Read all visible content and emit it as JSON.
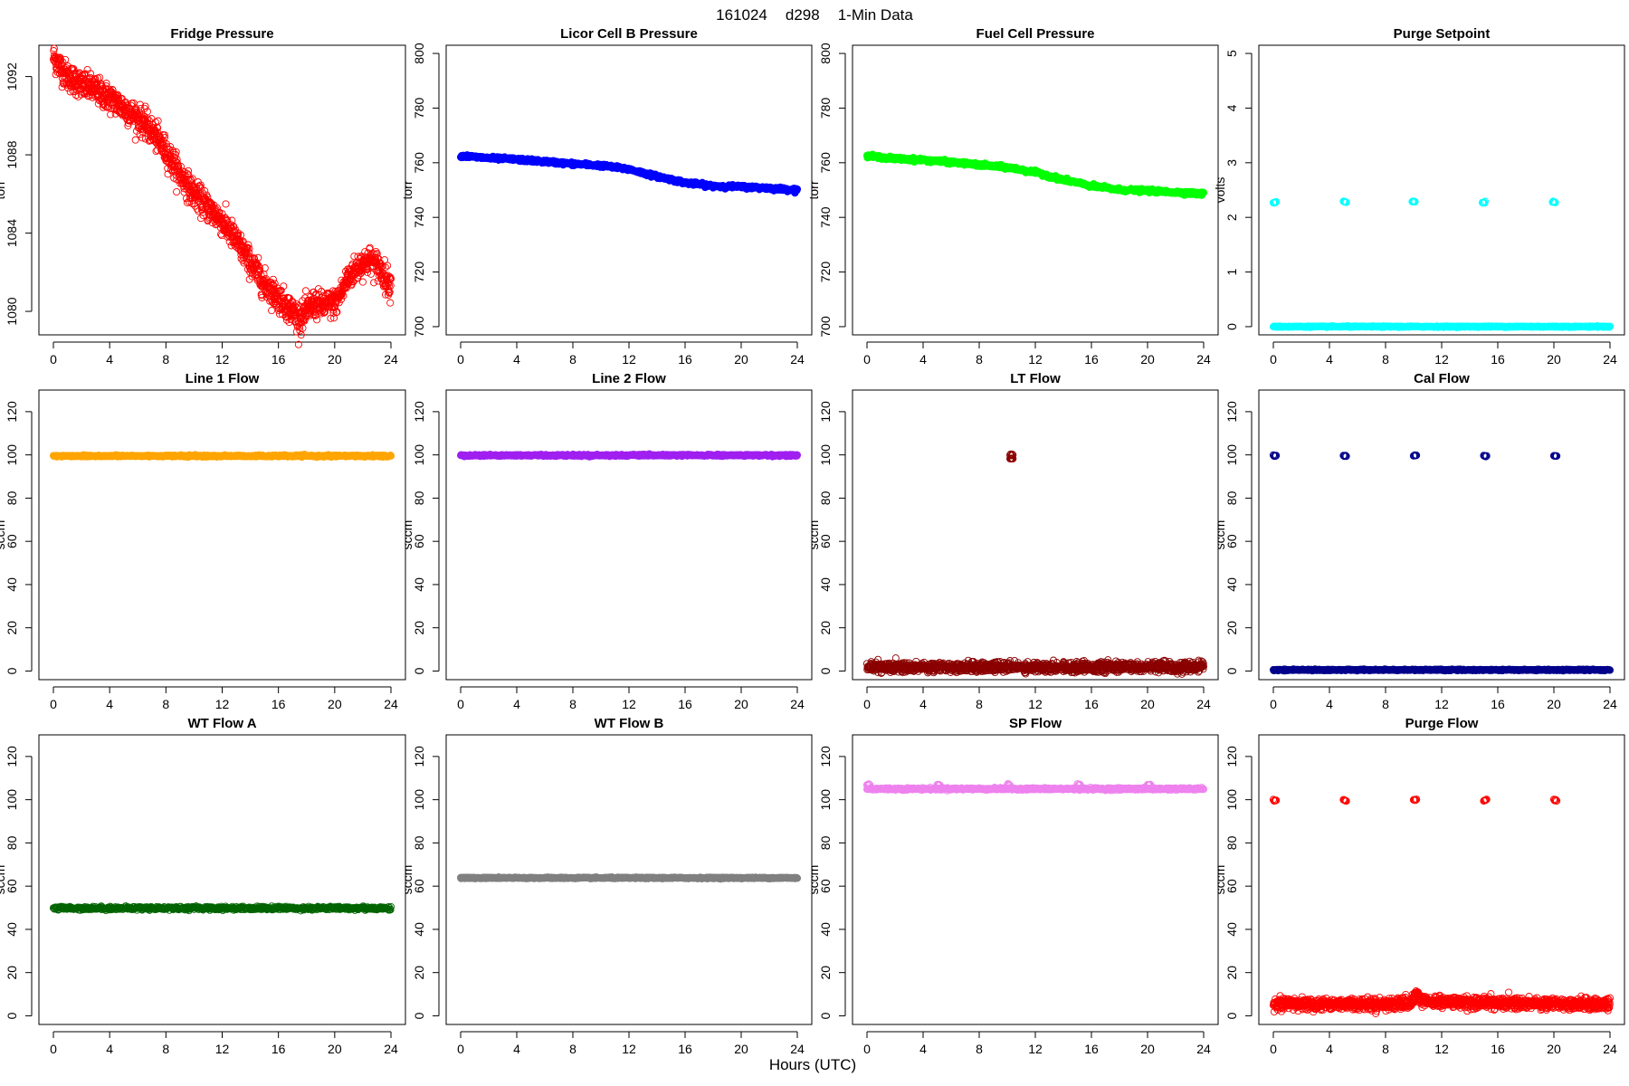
{
  "figure": {
    "date": "161024",
    "doy": "d298",
    "resolution": "1-Min Data",
    "xlabel": "Hours (UTC)"
  },
  "chart_data": [
    {
      "type": "scatter",
      "title": "Fridge Pressure",
      "ylabel": "torr",
      "color": "#ff0000",
      "filled": false,
      "xlim": [
        0,
        24
      ],
      "ylim": [
        1078.8,
        1093.6
      ],
      "xticks": [
        0,
        4,
        8,
        12,
        16,
        20,
        24
      ],
      "yticks": [
        1080,
        1084,
        1088,
        1092
      ],
      "series": [
        {
          "kind": "noisy",
          "noise": 0.35,
          "points": [
            [
              0,
              1093
            ],
            [
              0.5,
              1092.5
            ],
            [
              1,
              1092
            ],
            [
              2,
              1091.6
            ],
            [
              3,
              1091.3
            ],
            [
              4,
              1090.9
            ],
            [
              5,
              1090.4
            ],
            [
              6,
              1089.9
            ],
            [
              7,
              1089.2
            ],
            [
              8,
              1088.2
            ],
            [
              9,
              1087
            ],
            [
              10,
              1086
            ],
            [
              11,
              1085.3
            ],
            [
              12,
              1084.6
            ],
            [
              13,
              1083.6
            ],
            [
              14,
              1082.5
            ],
            [
              15,
              1081.4
            ],
            [
              16,
              1080.7
            ],
            [
              17,
              1080
            ],
            [
              17.6,
              1079.6
            ],
            [
              18,
              1080
            ],
            [
              18.5,
              1080.4
            ],
            [
              19,
              1080.3
            ],
            [
              20,
              1080.4
            ],
            [
              20.5,
              1081
            ],
            [
              21,
              1081.8
            ],
            [
              22,
              1082.5
            ],
            [
              22.5,
              1082.6
            ],
            [
              23,
              1082.4
            ],
            [
              24,
              1081.3
            ]
          ]
        }
      ]
    },
    {
      "type": "scatter",
      "title": "Licor Cell B Pressure",
      "ylabel": "torr",
      "color": "#0000ff",
      "filled": true,
      "xlim": [
        0,
        24
      ],
      "ylim": [
        697,
        803
      ],
      "xticks": [
        0,
        4,
        8,
        12,
        16,
        20,
        24
      ],
      "yticks": [
        700,
        720,
        740,
        760,
        780,
        800
      ],
      "series": [
        {
          "kind": "line",
          "noise": 0.3,
          "points": [
            [
              0,
              762.5
            ],
            [
              2,
              761.7
            ],
            [
              4,
              761.2
            ],
            [
              6,
              760.4
            ],
            [
              8,
              759.6
            ],
            [
              10,
              759
            ],
            [
              12,
              757.6
            ],
            [
              14,
              755
            ],
            [
              16,
              752.7
            ],
            [
              18,
              751.5
            ],
            [
              20,
              751.2
            ],
            [
              22,
              750.7
            ],
            [
              24,
              750
            ]
          ]
        }
      ]
    },
    {
      "type": "scatter",
      "title": "Fuel Cell Pressure",
      "ylabel": "torr",
      "color": "#00ff00",
      "filled": true,
      "xlim": [
        0,
        24
      ],
      "ylim": [
        697,
        803
      ],
      "xticks": [
        0,
        4,
        8,
        12,
        16,
        20,
        24
      ],
      "yticks": [
        700,
        720,
        740,
        760,
        780,
        800
      ],
      "series": [
        {
          "kind": "line",
          "noise": 0.3,
          "points": [
            [
              0,
              762.5
            ],
            [
              2,
              761.5
            ],
            [
              4,
              761
            ],
            [
              6,
              760.2
            ],
            [
              8,
              759.2
            ],
            [
              10,
              758.3
            ],
            [
              12,
              756.5
            ],
            [
              14,
              753.8
            ],
            [
              16,
              751.5
            ],
            [
              18,
              750.1
            ],
            [
              20,
              749.7
            ],
            [
              22,
              749.2
            ],
            [
              24,
              748.6
            ]
          ]
        }
      ]
    },
    {
      "type": "scatter",
      "title": "Purge Setpoint",
      "ylabel": "volts",
      "color": "#00ffff",
      "filled": false,
      "xlim": [
        0,
        24
      ],
      "ylim": [
        -0.15,
        5.15
      ],
      "xticks": [
        0,
        4,
        8,
        12,
        16,
        20,
        24
      ],
      "yticks": [
        0,
        1,
        2,
        3,
        4,
        5
      ],
      "series": [
        {
          "kind": "line",
          "noise": 0.005,
          "points": [
            [
              0,
              0
            ],
            [
              24,
              0
            ]
          ]
        },
        {
          "kind": "cluster",
          "points": [
            [
              0,
              2.28
            ],
            [
              5,
              2.28
            ],
            [
              9.9,
              2.28
            ],
            [
              14.9,
              2.28
            ],
            [
              19.9,
              2.28
            ]
          ]
        }
      ]
    },
    {
      "type": "scatter",
      "title": "Line 1 Flow",
      "ylabel": "sccm",
      "color": "#ffa500",
      "filled": true,
      "xlim": [
        0,
        24
      ],
      "ylim": [
        -4,
        130
      ],
      "xticks": [
        0,
        4,
        8,
        12,
        16,
        20,
        24
      ],
      "yticks": [
        0,
        20,
        40,
        60,
        80,
        100,
        120
      ],
      "series": [
        {
          "kind": "line",
          "noise": 0.2,
          "points": [
            [
              0,
              99.5
            ],
            [
              24,
              99.5
            ]
          ]
        }
      ]
    },
    {
      "type": "scatter",
      "title": "Line 2 Flow",
      "ylabel": "sccm",
      "color": "#a020f0",
      "filled": true,
      "xlim": [
        0,
        24
      ],
      "ylim": [
        -4,
        130
      ],
      "xticks": [
        0,
        4,
        8,
        12,
        16,
        20,
        24
      ],
      "yticks": [
        0,
        20,
        40,
        60,
        80,
        100,
        120
      ],
      "series": [
        {
          "kind": "line",
          "noise": 0.2,
          "points": [
            [
              0,
              99.8
            ],
            [
              24,
              99.8
            ]
          ]
        }
      ]
    },
    {
      "type": "scatter",
      "title": "LT Flow",
      "ylabel": "sccm",
      "color": "#8b0000",
      "filled": false,
      "xlim": [
        0,
        24
      ],
      "ylim": [
        -4,
        130
      ],
      "xticks": [
        0,
        4,
        8,
        12,
        16,
        20,
        24
      ],
      "yticks": [
        0,
        20,
        40,
        60,
        80,
        100,
        120
      ],
      "series": [
        {
          "kind": "noisy",
          "noise": 1.1,
          "points": [
            [
              0,
              1.8
            ],
            [
              24,
              1.8
            ]
          ]
        },
        {
          "kind": "cluster",
          "points": [
            [
              10.2,
              100
            ],
            [
              10.2,
              98
            ]
          ]
        }
      ]
    },
    {
      "type": "scatter",
      "title": "Cal Flow",
      "ylabel": "sccm",
      "color": "#00008b",
      "filled": false,
      "xlim": [
        0,
        24
      ],
      "ylim": [
        -4,
        130
      ],
      "xticks": [
        0,
        4,
        8,
        12,
        16,
        20,
        24
      ],
      "yticks": [
        0,
        20,
        40,
        60,
        80,
        100,
        120
      ],
      "series": [
        {
          "kind": "line",
          "noise": 0.15,
          "points": [
            [
              0,
              0.5
            ],
            [
              24,
              0.5
            ]
          ]
        },
        {
          "kind": "cluster",
          "points": [
            [
              0,
              99.6
            ],
            [
              5,
              99.6
            ],
            [
              10,
              99.6
            ],
            [
              15,
              99.6
            ],
            [
              20,
              99.6
            ]
          ]
        }
      ]
    },
    {
      "type": "scatter",
      "title": "WT Flow A",
      "ylabel": "sccm",
      "color": "#006400",
      "filled": false,
      "xlim": [
        0,
        24
      ],
      "ylim": [
        -4,
        130
      ],
      "xticks": [
        0,
        4,
        8,
        12,
        16,
        20,
        24
      ],
      "yticks": [
        0,
        20,
        40,
        60,
        80,
        100,
        120
      ],
      "series": [
        {
          "kind": "line",
          "noise": 0.4,
          "points": [
            [
              0,
              49.8
            ],
            [
              24,
              49.8
            ]
          ]
        }
      ]
    },
    {
      "type": "scatter",
      "title": "WT Flow B",
      "ylabel": "sccm",
      "color": "#808080",
      "filled": true,
      "xlim": [
        0,
        24
      ],
      "ylim": [
        -4,
        130
      ],
      "xticks": [
        0,
        4,
        8,
        12,
        16,
        20,
        24
      ],
      "yticks": [
        0,
        20,
        40,
        60,
        80,
        100,
        120
      ],
      "series": [
        {
          "kind": "line",
          "noise": 0.15,
          "points": [
            [
              0,
              63.8
            ],
            [
              24,
              63.8
            ]
          ]
        }
      ]
    },
    {
      "type": "scatter",
      "title": "SP Flow",
      "ylabel": "sccm",
      "color": "#ee82ee",
      "filled": false,
      "xlim": [
        0,
        24
      ],
      "ylim": [
        -4,
        130
      ],
      "xticks": [
        0,
        4,
        8,
        12,
        16,
        20,
        24
      ],
      "yticks": [
        0,
        20,
        40,
        60,
        80,
        100,
        120
      ],
      "series": [
        {
          "kind": "line",
          "noise": 0.25,
          "points": [
            [
              0,
              105
            ],
            [
              24,
              105
            ]
          ]
        },
        {
          "kind": "cluster",
          "points": [
            [
              0,
              107
            ],
            [
              5,
              107
            ],
            [
              10,
              107
            ],
            [
              15,
              107
            ],
            [
              20,
              107
            ]
          ]
        }
      ]
    },
    {
      "type": "scatter",
      "title": "Purge Flow",
      "ylabel": "sccm",
      "color": "#ff0000",
      "filled": false,
      "xlim": [
        0,
        24
      ],
      "ylim": [
        -4,
        130
      ],
      "xticks": [
        0,
        4,
        8,
        12,
        16,
        20,
        24
      ],
      "yticks": [
        0,
        20,
        40,
        60,
        80,
        100,
        120
      ],
      "series": [
        {
          "kind": "noisy",
          "noise": 1.3,
          "points": [
            [
              0,
              5.5
            ],
            [
              9.8,
              5.5
            ],
            [
              10.2,
              10
            ],
            [
              10.6,
              6.5
            ],
            [
              24,
              5.3
            ]
          ]
        },
        {
          "kind": "cluster",
          "points": [
            [
              0,
              99.8
            ],
            [
              5,
              99.8
            ],
            [
              10,
              99.8
            ],
            [
              15,
              99.8
            ],
            [
              20,
              99.8
            ]
          ]
        }
      ]
    }
  ]
}
